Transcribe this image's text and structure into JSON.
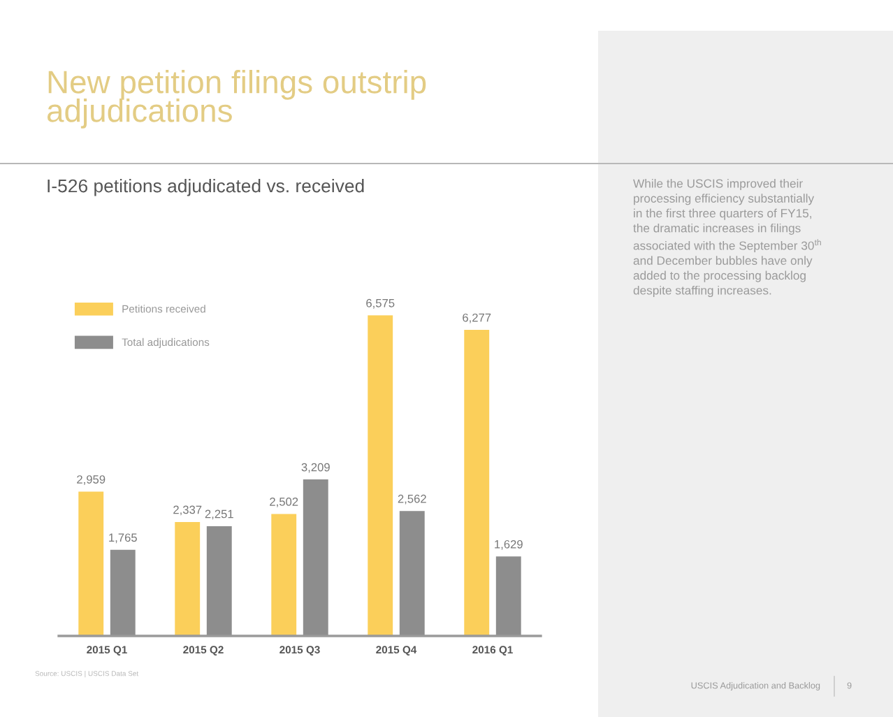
{
  "chart_data": {
    "type": "bar",
    "title": "New petition filings outstrip\nadjudications",
    "subtitle": "I-526 petitions adjudicated vs. received",
    "categories": [
      "2015 Q1",
      "2015 Q2",
      "2015 Q3",
      "2015 Q4",
      "2016 Q1"
    ],
    "series": [
      {
        "name": "Petitions received",
        "color": "#fbcf5a",
        "values": [
          2959,
          2337,
          2502,
          6575,
          6277
        ],
        "value_labels": [
          "2,959",
          "2,337",
          "2,502",
          "6,575",
          "6,277"
        ]
      },
      {
        "name": "Total adjudications",
        "color": "#8d8d8d",
        "values": [
          1765,
          2251,
          3209,
          2562,
          1629
        ],
        "value_labels": [
          "1,765",
          "2,251",
          "3,209",
          "2,562",
          "1,629"
        ]
      }
    ],
    "legend": "top left",
    "tick_labels": "x",
    "annotations": [
      "Source: USCIS | USCIS Data Set",
      "While the USCIS improved their\nprocessing efficiency substantially\nin the first three quarters of FY15,\nthe dramatic increases in filings\nassociated with the September 30$^{th}$\nand December bubbles have only\nadded to the processing backlog\ndespite staffing increases.",
      "USCIS Adjudication and Backlog",
      "9"
    ]
  }
}
